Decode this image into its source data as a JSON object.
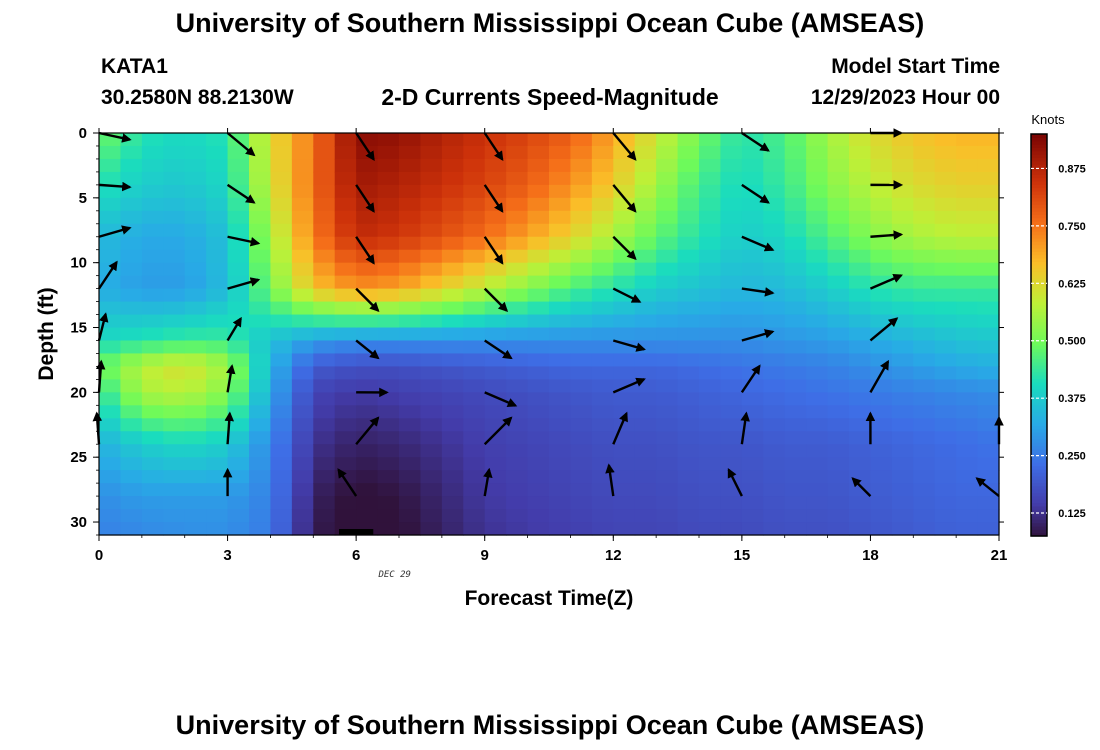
{
  "header": {
    "title_top": "University of Southern Mississippi Ocean Cube (AMSEAS)",
    "station_id": "KATA1",
    "station_coords": "30.2580N  88.2130W",
    "plot_title": "2-D Currents Speed-Magnitude",
    "model_start_label": "Model Start Time",
    "model_start_value": "12/29/2023 Hour 00",
    "title_bottom": "University of Southern Mississippi Ocean Cube (AMSEAS)"
  },
  "chart_data": {
    "type": "heatmap",
    "title": "2-D Currents Speed-Magnitude",
    "xlabel": "Forecast Time(Z)",
    "ylabel": "Depth (ft)",
    "x_ticks": [
      0,
      3,
      6,
      9,
      12,
      15,
      18,
      21
    ],
    "y_ticks": [
      0,
      5,
      10,
      15,
      20,
      25,
      30
    ],
    "xlim": [
      0,
      21
    ],
    "ylim": [
      0,
      31
    ],
    "date_label": "DEC 29",
    "colorbar": {
      "units": "Knots",
      "range": [
        0.075,
        0.95
      ],
      "tick_values": [
        0.125,
        0.25,
        0.375,
        0.5,
        0.625,
        0.75,
        0.875
      ],
      "tick_labels": [
        "0.125",
        "0.250",
        "0.375",
        "0.500",
        "0.625",
        "0.750",
        "0.875"
      ]
    },
    "times": [
      0,
      1,
      2,
      3,
      4,
      5,
      6,
      7,
      8,
      9,
      10,
      11,
      12,
      13,
      14,
      15,
      16,
      17,
      18,
      19,
      20,
      21
    ],
    "depth_nodes": [
      0,
      4,
      8,
      12,
      16,
      18,
      20,
      24,
      28,
      31
    ],
    "speed_knots_by_depth": [
      [
        0.5,
        0.42,
        0.4,
        0.42,
        0.62,
        0.75,
        0.93,
        0.92,
        0.88,
        0.85,
        0.82,
        0.78,
        0.7,
        0.6,
        0.5,
        0.42,
        0.46,
        0.55,
        0.62,
        0.66,
        0.68,
        0.68
      ],
      [
        0.42,
        0.38,
        0.37,
        0.4,
        0.6,
        0.76,
        0.9,
        0.88,
        0.85,
        0.82,
        0.78,
        0.72,
        0.65,
        0.55,
        0.45,
        0.4,
        0.44,
        0.52,
        0.58,
        0.62,
        0.64,
        0.64
      ],
      [
        0.35,
        0.32,
        0.32,
        0.36,
        0.55,
        0.74,
        0.86,
        0.84,
        0.8,
        0.76,
        0.7,
        0.64,
        0.56,
        0.48,
        0.42,
        0.38,
        0.4,
        0.46,
        0.52,
        0.56,
        0.58,
        0.58
      ],
      [
        0.33,
        0.3,
        0.3,
        0.35,
        0.5,
        0.66,
        0.72,
        0.7,
        0.64,
        0.58,
        0.52,
        0.46,
        0.42,
        0.38,
        0.36,
        0.34,
        0.35,
        0.38,
        0.42,
        0.44,
        0.44,
        0.44
      ],
      [
        0.4,
        0.42,
        0.44,
        0.44,
        0.36,
        0.3,
        0.28,
        0.28,
        0.28,
        0.28,
        0.28,
        0.28,
        0.28,
        0.28,
        0.28,
        0.28,
        0.29,
        0.3,
        0.32,
        0.34,
        0.36,
        0.37
      ],
      [
        0.48,
        0.58,
        0.62,
        0.55,
        0.34,
        0.2,
        0.18,
        0.18,
        0.19,
        0.2,
        0.21,
        0.22,
        0.22,
        0.22,
        0.23,
        0.24,
        0.25,
        0.26,
        0.28,
        0.3,
        0.32,
        0.33
      ],
      [
        0.42,
        0.56,
        0.58,
        0.52,
        0.32,
        0.16,
        0.14,
        0.15,
        0.16,
        0.17,
        0.18,
        0.19,
        0.2,
        0.2,
        0.21,
        0.22,
        0.23,
        0.24,
        0.25,
        0.26,
        0.27,
        0.28
      ],
      [
        0.33,
        0.38,
        0.4,
        0.38,
        0.27,
        0.13,
        0.1,
        0.11,
        0.13,
        0.15,
        0.16,
        0.17,
        0.18,
        0.18,
        0.19,
        0.19,
        0.2,
        0.2,
        0.21,
        0.22,
        0.23,
        0.24
      ],
      [
        0.28,
        0.3,
        0.3,
        0.3,
        0.26,
        0.1,
        0.07,
        0.08,
        0.11,
        0.14,
        0.15,
        0.16,
        0.17,
        0.17,
        0.18,
        0.18,
        0.19,
        0.19,
        0.2,
        0.21,
        0.22,
        0.22
      ],
      [
        0.26,
        0.27,
        0.28,
        0.28,
        0.25,
        0.09,
        0.06,
        0.07,
        0.1,
        0.13,
        0.14,
        0.15,
        0.16,
        0.16,
        0.17,
        0.17,
        0.18,
        0.18,
        0.19,
        0.2,
        0.21,
        0.21
      ]
    ],
    "vector_times": [
      0,
      3,
      6,
      9,
      12,
      15,
      18,
      21
    ],
    "vector_depths": [
      0,
      4,
      8,
      12,
      16,
      20,
      24,
      28
    ],
    "vector_u_by_time": [
      [
        0.7,
        0.7,
        0.7,
        0.4,
        0.15,
        0.05,
        -0.05,
        0
      ],
      [
        0.6,
        0.6,
        0.7,
        0.7,
        0.3,
        0.1,
        0.05,
        0
      ],
      [
        0.4,
        0.4,
        0.4,
        0.5,
        0.5,
        0.7,
        0.5,
        -0.4
      ],
      [
        0.4,
        0.4,
        0.4,
        0.5,
        0.6,
        0.7,
        0.6,
        0.1
      ],
      [
        0.5,
        0.5,
        0.5,
        0.6,
        0.7,
        0.7,
        0.3,
        -0.1
      ],
      [
        0.6,
        0.6,
        0.7,
        0.7,
        0.7,
        0.4,
        0.1,
        -0.3
      ],
      [
        0.7,
        0.7,
        0.7,
        0.7,
        0.6,
        0.4,
        0.0,
        -0.4
      ],
      [
        0,
        0,
        0,
        0,
        0,
        0,
        0,
        -0.5
      ]
    ],
    "vector_v_by_time": [
      [
        -0.15,
        -0.05,
        0.2,
        0.6,
        0.6,
        0.7,
        0.7,
        0
      ],
      [
        -0.5,
        -0.4,
        -0.15,
        0.2,
        0.5,
        0.6,
        0.7,
        0.6
      ],
      [
        -0.6,
        -0.6,
        -0.6,
        -0.5,
        -0.4,
        0.0,
        0.6,
        0.6
      ],
      [
        -0.6,
        -0.6,
        -0.6,
        -0.5,
        -0.4,
        -0.3,
        0.6,
        0.6
      ],
      [
        -0.6,
        -0.6,
        -0.5,
        -0.3,
        -0.2,
        0.3,
        0.7,
        0.7
      ],
      [
        -0.4,
        -0.4,
        -0.3,
        -0.1,
        0.2,
        0.6,
        0.7,
        0.6
      ],
      [
        0.0,
        0.0,
        0.05,
        0.3,
        0.5,
        0.7,
        0.7,
        0.4
      ],
      [
        0,
        0,
        0,
        0,
        0,
        0,
        0.6,
        0.4
      ]
    ]
  }
}
